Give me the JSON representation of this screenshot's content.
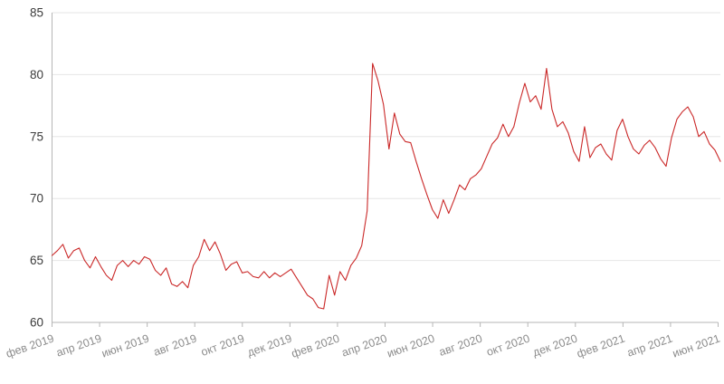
{
  "chart_data": {
    "type": "line",
    "title": "",
    "xlabel": "",
    "ylabel": "",
    "ylim": [
      60,
      85
    ],
    "y_ticks": [
      60,
      65,
      70,
      75,
      80,
      85
    ],
    "x_tick_labels": [
      "фев 2019",
      "апр 2019",
      "июн 2019",
      "авг 2019",
      "окт 2019",
      "дек 2019",
      "фев 2020",
      "апр 2020",
      "июн 2020",
      "авг 2020",
      "окт 2020",
      "дек 2020",
      "фев 2021",
      "апр 2021",
      "июн 2021"
    ],
    "grid": "horizontal",
    "legend": "none",
    "series": [
      {
        "color": "#ca2828",
        "values": [
          65.4,
          65.8,
          66.3,
          65.2,
          65.8,
          66.0,
          65.0,
          64.4,
          65.3,
          64.5,
          63.8,
          63.4,
          64.6,
          65.0,
          64.5,
          65.0,
          64.7,
          65.3,
          65.1,
          64.2,
          63.8,
          64.4,
          63.1,
          62.9,
          63.3,
          62.8,
          64.6,
          65.3,
          66.7,
          65.8,
          66.5,
          65.5,
          64.2,
          64.7,
          64.9,
          64.0,
          64.1,
          63.7,
          63.6,
          64.1,
          63.6,
          64.0,
          63.7,
          64.0,
          64.3,
          63.6,
          62.9,
          62.2,
          61.9,
          61.2,
          61.1,
          63.8,
          62.2,
          64.1,
          63.4,
          64.6,
          65.2,
          66.2,
          69.0,
          80.9,
          79.5,
          77.6,
          74.0,
          76.9,
          75.2,
          74.6,
          74.5,
          73.0,
          71.6,
          70.3,
          69.1,
          68.4,
          69.9,
          68.8,
          69.9,
          71.1,
          70.7,
          71.6,
          71.9,
          72.4,
          73.4,
          74.4,
          74.9,
          76.0,
          75.0,
          75.8,
          77.7,
          79.3,
          77.8,
          78.3,
          77.2,
          80.5,
          77.2,
          75.8,
          76.2,
          75.3,
          73.8,
          73.0,
          75.8,
          73.3,
          74.1,
          74.4,
          73.6,
          73.1,
          75.5,
          76.4,
          75.0,
          74.0,
          73.6,
          74.3,
          74.7,
          74.1,
          73.2,
          72.6,
          74.9,
          76.4,
          77.0,
          77.4,
          76.6,
          75.0,
          75.4,
          74.4,
          73.9,
          73.0
        ]
      }
    ]
  },
  "colors": {
    "background": "#ffffff",
    "line": "#ca2828",
    "gridline": "#e6e6e6",
    "axis": "#b6b6b6",
    "y_label": "#3b3b3b",
    "x_label": "#8c8c8c"
  }
}
